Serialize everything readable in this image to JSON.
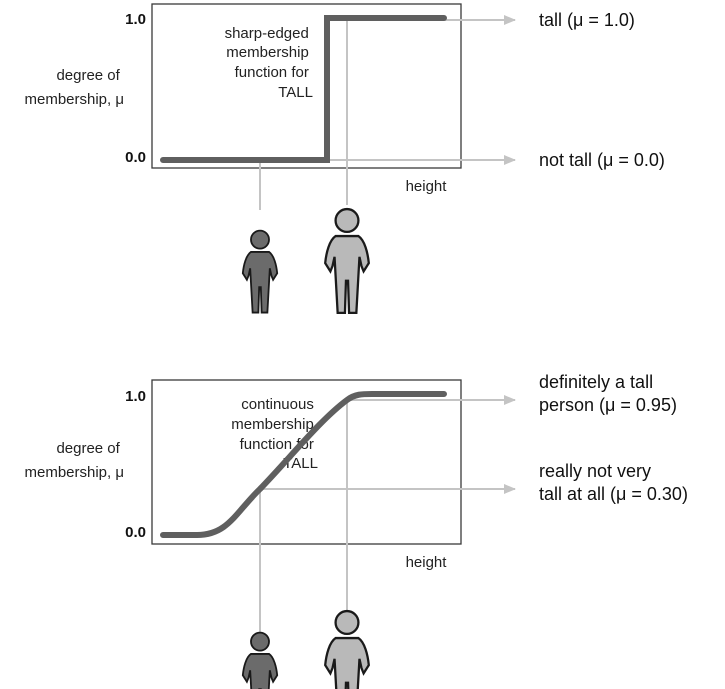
{
  "panels": [
    {
      "ytick_top": "1.0",
      "ytick_bottom": "0.0",
      "ylabel": [
        "degree of",
        "membership, μ"
      ],
      "xlabel": "height",
      "annotation": [
        "sharp-edged",
        "membership",
        "function for",
        "TALL"
      ],
      "outcomes": [
        {
          "lines": [
            "tall (μ = 1.0)"
          ]
        },
        {
          "lines": [
            "not tall (μ = 0.0)"
          ]
        }
      ]
    },
    {
      "ytick_top": "1.0",
      "ytick_bottom": "0.0",
      "ylabel": [
        "degree of",
        "membership, μ"
      ],
      "xlabel": "height",
      "annotation": [
        "continuous",
        "membership",
        "function for",
        "TALL"
      ],
      "outcomes": [
        {
          "lines": [
            "definitely a tall",
            "person (μ = 0.95)"
          ]
        },
        {
          "lines": [
            "really not very",
            "tall at all (μ = 0.30)"
          ]
        }
      ]
    }
  ],
  "colors": {
    "curve": "#5f5f5f",
    "frame": "#3a3a3a",
    "pointer": "#c4c4c4",
    "short_person": "#6b6b6b",
    "tall_person": "#b9b9b9",
    "person_outline": "#1a1a1a"
  },
  "icons": [
    "short-person-icon",
    "tall-person-icon"
  ]
}
